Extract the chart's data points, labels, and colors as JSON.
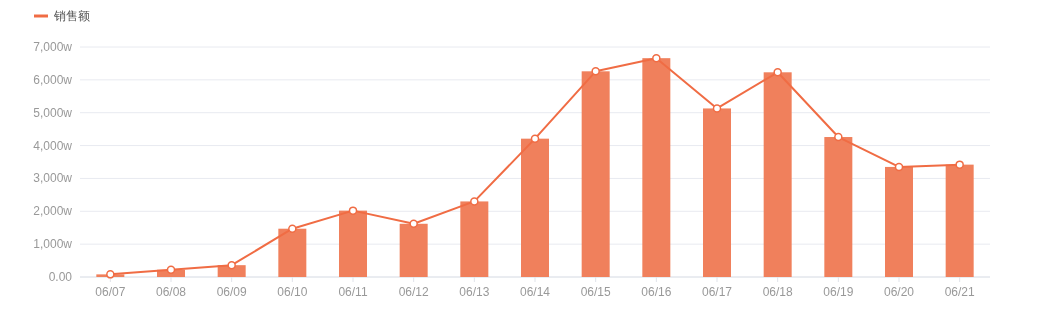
{
  "chart_data": {
    "type": "bar",
    "categories": [
      "06/07",
      "06/08",
      "06/09",
      "06/10",
      "06/11",
      "06/12",
      "06/13",
      "06/14",
      "06/15",
      "06/16",
      "06/17",
      "06/18",
      "06/19",
      "06/20",
      "06/21"
    ],
    "series": [
      {
        "color": "#f0805c",
        "values": [
          80,
          220,
          360,
          1470,
          2020,
          1620,
          2300,
          4210,
          6260,
          6660,
          5130,
          6230,
          4260,
          3350,
          3420
        ]
      },
      {
        "type": "line",
        "name": "销售额",
        "color": "#f06c44",
        "values": [
          80,
          220,
          360,
          1470,
          2020,
          1620,
          2300,
          4210,
          6260,
          6660,
          5130,
          6230,
          4260,
          3350,
          3420
        ]
      }
    ],
    "ylim": [
      0,
      7000
    ],
    "yticks": [
      {
        "value": 0,
        "label": "0.00"
      },
      {
        "value": 1000,
        "label": "1,000w"
      },
      {
        "value": 2000,
        "label": "2,000w"
      },
      {
        "value": 3000,
        "label": "3,000w"
      },
      {
        "value": 4000,
        "label": "4,000w"
      },
      {
        "value": 5000,
        "label": "5,000w"
      },
      {
        "value": 6000,
        "label": "6,000w"
      },
      {
        "value": 7000,
        "label": "7,000w"
      }
    ],
    "grid": "y",
    "legend": "top left",
    "marker": "circle",
    "line_style": "solid"
  }
}
